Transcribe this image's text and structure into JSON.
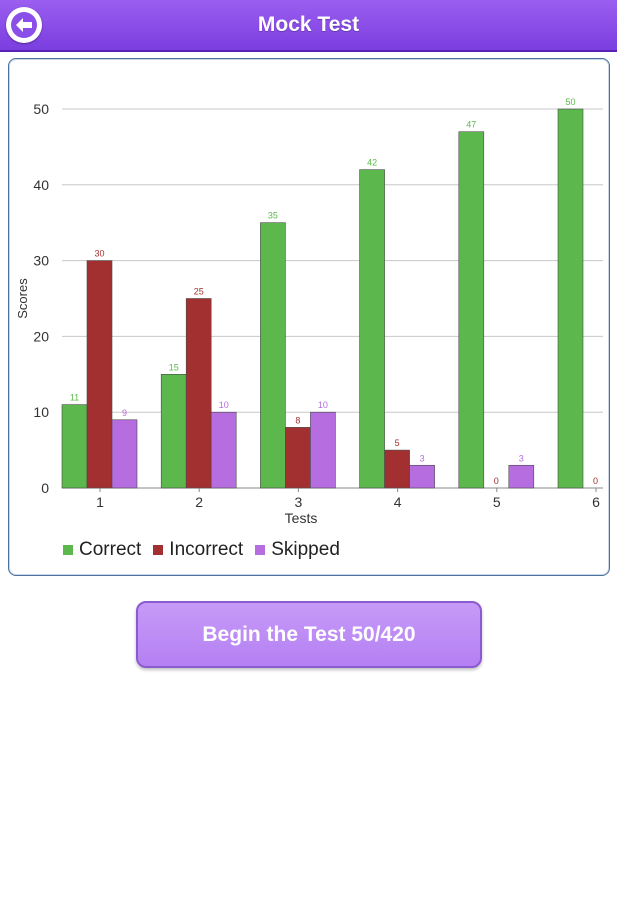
{
  "header": {
    "title": "Mock Test",
    "back_icon": "back-arrow-icon"
  },
  "colors": {
    "header": "#8a4fe8",
    "correct": "#5cb84c",
    "incorrect": "#a33030",
    "skipped": "#b66de0",
    "button": "#bd8cf5"
  },
  "chart_data": {
    "type": "bar",
    "xlabel": "Tests",
    "ylabel": "Scores",
    "categories": [
      "1",
      "2",
      "3",
      "4",
      "5",
      "6"
    ],
    "ylim": [
      0,
      50
    ],
    "yticks": [
      0,
      10,
      20,
      30,
      40,
      50
    ],
    "grid": true,
    "legend_placement": "bottom-left",
    "series": [
      {
        "name": "Correct",
        "color": "#5cb84c",
        "values": [
          11,
          15,
          35,
          42,
          47,
          50
        ]
      },
      {
        "name": "Incorrect",
        "color": "#a33030",
        "values": [
          30,
          25,
          8,
          5,
          0,
          0
        ]
      },
      {
        "name": "Skipped",
        "color": "#b66de0",
        "values": [
          9,
          10,
          10,
          3,
          3,
          null
        ]
      }
    ]
  },
  "button": {
    "label": "Begin the Test 50/420"
  }
}
